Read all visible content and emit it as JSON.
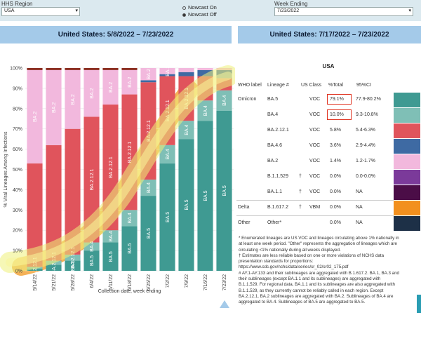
{
  "controls": {
    "region_label": "HHS Region",
    "region_value": "USA",
    "nowcast_options": [
      "Nowcast On",
      "Nowcast Off"
    ],
    "nowcast_selected": "Nowcast Off",
    "week_label": "Week Ending",
    "week_value": "7/23/2022"
  },
  "headers": {
    "left": "United States: 5/8/2022 – 7/23/2022",
    "right": "United States: 7/17/2022 – 7/23/2022"
  },
  "chart_data": {
    "type": "bar",
    "stacked": true,
    "ylabel": "% Viral Lineages Among Infections",
    "xlabel": "Collection date, week ending",
    "ylim": [
      0,
      100
    ],
    "yticks": [
      "0%",
      "10%",
      "20%",
      "30%",
      "40%",
      "50%",
      "60%",
      "70%",
      "80%",
      "90%",
      "100%"
    ],
    "categories": [
      "5/14/22",
      "5/21/22",
      "5/28/22",
      "6/4/22",
      "6/11/22",
      "6/18/22",
      "6/25/22",
      "7/2/22",
      "7/9/22",
      "7/16/22",
      "7/23/22"
    ],
    "series": [
      {
        "name": "BA.5",
        "color": "#3f9a92",
        "values": [
          1,
          3,
          5,
          10,
          14,
          22,
          37,
          53,
          65,
          74,
          79
        ]
      },
      {
        "name": "BA.4",
        "color": "#7fbfb6",
        "values": [
          1,
          2,
          3,
          4,
          6,
          8,
          8,
          9,
          9,
          10,
          10
        ]
      },
      {
        "name": "BA.2.12.1",
        "color": "#e0545c",
        "values": [
          51,
          57,
          62,
          62,
          62,
          57,
          48,
          34,
          22,
          12,
          6
        ]
      },
      {
        "name": "BA.4.6",
        "color": "#3e6aa3",
        "values": [
          0,
          0,
          0,
          0,
          0,
          0,
          1,
          1,
          2,
          3,
          4
        ]
      },
      {
        "name": "BA.2",
        "color": "#f2b8dd",
        "values": [
          46,
          37,
          29,
          23,
          17,
          12,
          6,
          3,
          2,
          1,
          1
        ]
      },
      {
        "name": "Other",
        "color": "#8b2c20",
        "values": [
          1,
          1,
          1,
          1,
          1,
          1,
          0,
          0,
          0,
          0,
          0
        ]
      }
    ],
    "bar_labels": [
      [
        null,
        "BA.2.12.1",
        null,
        "BA.2"
      ],
      [
        null,
        "BA.2.12.1",
        null,
        "BA.2"
      ],
      [
        "BA.5",
        "BA.2.12.1",
        null,
        "BA.2"
      ],
      [
        "BA.5",
        "BA.4",
        "BA.2.12.1",
        "BA.2"
      ],
      [
        "BA.5",
        "BA.4",
        "BA.2.12.1",
        "BA.2"
      ],
      [
        "BA.5",
        "BA.4",
        "BA.2.12.1",
        "BA.2"
      ],
      [
        "BA.5",
        "BA.4",
        "BA.2.12.1",
        "BA.2"
      ],
      [
        "BA.5",
        "BA.4",
        "BA.2.12.1",
        "BA.2"
      ],
      [
        "BA.5",
        "BA.4",
        "BA.2.12.1",
        null
      ],
      [
        "BA.5",
        "BA.4",
        null,
        null
      ],
      [
        "BA.5",
        "BA.4",
        null,
        null
      ]
    ]
  },
  "table": {
    "title": "USA",
    "headers": [
      "WHO label",
      "Lineage #",
      "US Class",
      "%Total",
      "95%CI"
    ],
    "rows": [
      {
        "who": "Omicron",
        "lineage": "BA.5",
        "mark": "",
        "cls": "VOC",
        "pct": "79.1%",
        "ci": "77.9-80.2%",
        "color": "#3f9a92",
        "hl": true
      },
      {
        "who": "",
        "lineage": "BA.4",
        "mark": "",
        "cls": "VOC",
        "pct": "10.0%",
        "ci": "9.3-10.8%",
        "color": "#7fbfb6",
        "hl": true
      },
      {
        "who": "",
        "lineage": "BA.2.12.1",
        "mark": "",
        "cls": "VOC",
        "pct": "5.8%",
        "ci": "5.4-6.3%",
        "color": "#e0545c",
        "hl": false
      },
      {
        "who": "",
        "lineage": "BA.4.6",
        "mark": "",
        "cls": "VOC",
        "pct": "3.6%",
        "ci": "2.9-4.4%",
        "color": "#3e6aa3",
        "hl": false
      },
      {
        "who": "",
        "lineage": "BA.2",
        "mark": "",
        "cls": "VOC",
        "pct": "1.4%",
        "ci": "1.2-1.7%",
        "color": "#f2b8dd",
        "hl": false
      },
      {
        "who": "",
        "lineage": "B.1.1.529",
        "mark": "†",
        "cls": "VOC",
        "pct": "0.0%",
        "ci": "0.0-0.0%",
        "color": "#7b3a9a",
        "hl": false
      },
      {
        "who": "",
        "lineage": "BA.1.1",
        "mark": "†",
        "cls": "VOC",
        "pct": "0.0%",
        "ci": "NA",
        "color": "#4b0d47",
        "hl": false
      },
      {
        "who": "Delta",
        "lineage": "B.1.617.2",
        "mark": "†",
        "cls": "VBM",
        "pct": "0.0%",
        "ci": "NA",
        "color": "#f2901e",
        "hl": false
      },
      {
        "who": "Other",
        "lineage": "Other*",
        "mark": "",
        "cls": "",
        "pct": "0.0%",
        "ci": "NA",
        "color": "#1d3047",
        "hl": false
      }
    ]
  },
  "footnotes": [
    "*      Enumerated lineages are US VOC and lineages circulating above 1% nationally in at least one week period. \"Other\" represents the aggregation of lineages which are circulating <1% nationally during all weeks displayed.",
    "†      Estimates are less reliable based on one or more violations of NCHS data presentation standards for proportions: https://www.cdc.gov/nchs/data/series/sr_02/sr02_175.pdf",
    "#      AY.1-AY.133 and their sublineages are aggregated with B.1.617.2. BA.1, BA.3 and their sublineages (except BA.1.1 and its sublineages) are aggregated with B.1.1.529. For regional data, BA.1.1 and its sublineages are also aggregated with B.1.1.529, as they currently cannot be reliably called in each region. Except BA.2.12.1, BA.2 sublineages are aggregated with BA.2. Sublineages of BA.4 are aggregated to BA.4. Sublineages of BA.5 are aggregated to BA.5."
  ]
}
